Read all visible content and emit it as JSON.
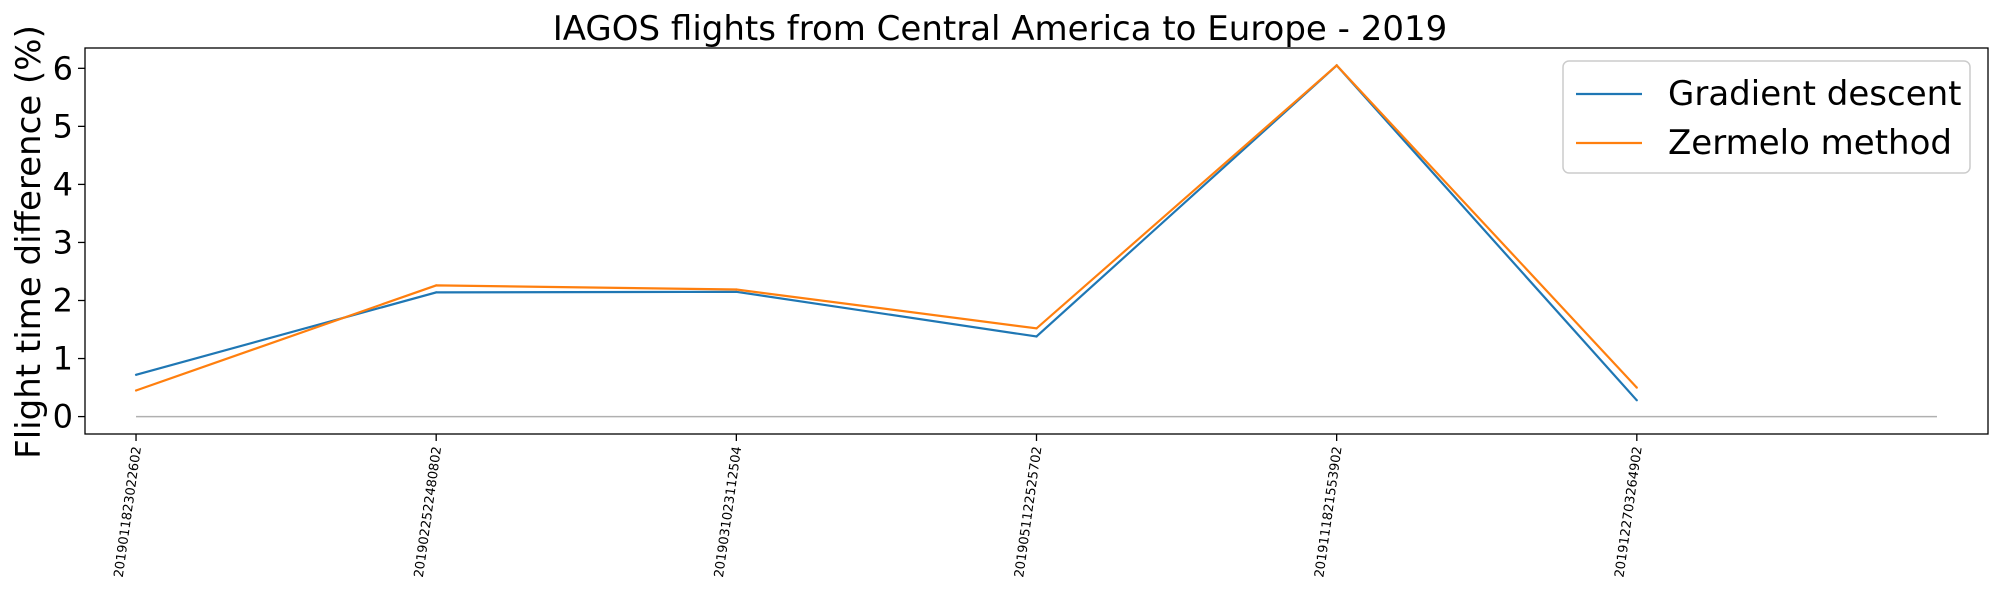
{
  "chart_data": {
    "type": "line",
    "title": "IAGOS flights from Central America to Europe - 2019",
    "xlabel": "",
    "ylabel": "Flight time difference (%)",
    "categories": [
      "2019011823022602",
      "2019022522480802",
      "2019031023112504",
      "2019051122525702",
      "2019111821553902",
      "2019122703264902"
    ],
    "ylim": [
      -0.3,
      6.35
    ],
    "xlim": [
      -0.17,
      6.17
    ],
    "yticks": [
      0,
      1,
      2,
      3,
      4,
      5,
      6
    ],
    "grid": false,
    "legend_position": "top-right",
    "series": [
      {
        "name": "Gradient descent",
        "color": "#1f77b4",
        "values": [
          0.72,
          2.14,
          2.15,
          1.38,
          6.05,
          0.28
        ]
      },
      {
        "name": "Zermelo method",
        "color": "#ff7f0e",
        "values": [
          0.45,
          2.26,
          2.19,
          1.52,
          6.05,
          0.5
        ]
      }
    ],
    "reference_line": {
      "y": 0,
      "x_range": [
        0,
        6
      ],
      "color": "#b0b0b0"
    }
  }
}
